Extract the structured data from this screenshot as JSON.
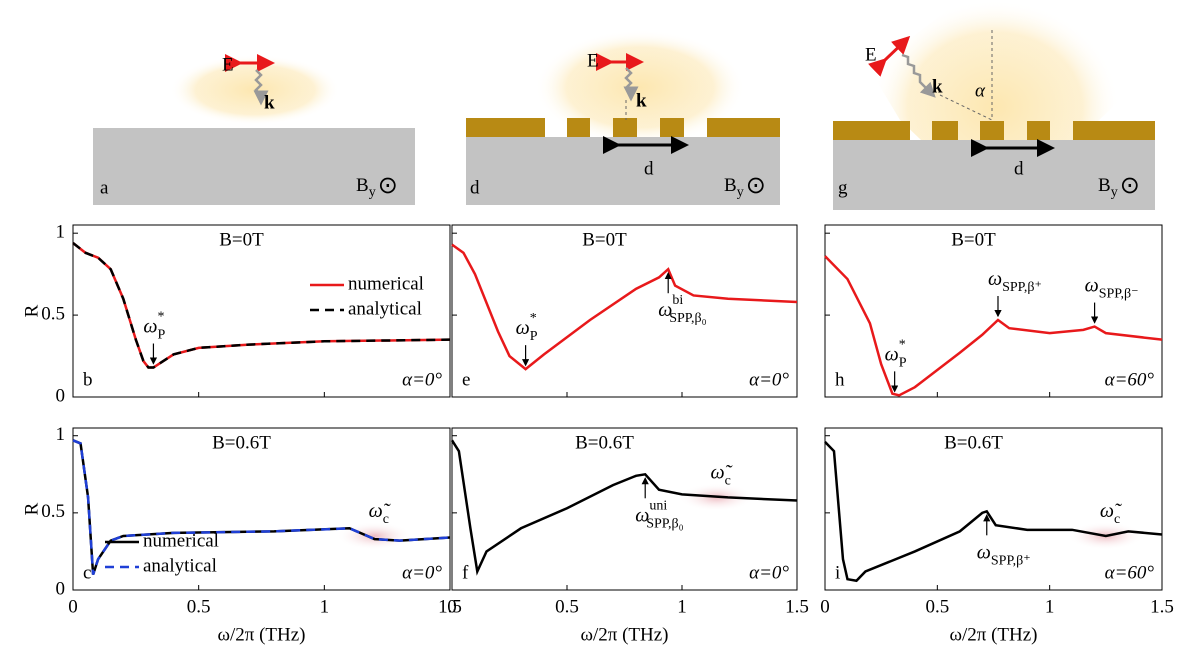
{
  "diagrams": [
    {
      "panel": "a",
      "E": "E",
      "k": "k",
      "B": "B",
      "sub": "y",
      "symbol": "⊙"
    },
    {
      "panel": "d",
      "E": "E",
      "k": "k",
      "d": "d",
      "B": "B",
      "sub": "y",
      "symbol": "⊙"
    },
    {
      "panel": "g",
      "E": "E",
      "k": "k",
      "d": "d",
      "angle": "α",
      "B": "B",
      "sub": "y",
      "symbol": "⊙"
    }
  ],
  "chart_data": [
    {
      "type": "line",
      "panel": "b",
      "field": "B=0T",
      "angle": "α=0°",
      "ylabel": "R",
      "x": [
        0,
        0.05,
        0.1,
        0.15,
        0.2,
        0.25,
        0.28,
        0.3,
        0.32,
        0.35,
        0.4,
        0.5,
        0.7,
        1.0,
        1.5
      ],
      "series": [
        {
          "name": "numerical",
          "color": "#e8191b",
          "dash": false,
          "values": [
            0.94,
            0.88,
            0.85,
            0.78,
            0.6,
            0.35,
            0.22,
            0.18,
            0.18,
            0.21,
            0.26,
            0.3,
            0.32,
            0.34,
            0.35
          ]
        },
        {
          "name": "analytical",
          "color": "#000000",
          "dash": true,
          "values": [
            0.94,
            0.88,
            0.85,
            0.78,
            0.6,
            0.35,
            0.22,
            0.18,
            0.18,
            0.21,
            0.26,
            0.3,
            0.32,
            0.34,
            0.35
          ]
        }
      ],
      "legend": "upper right",
      "annotations": [
        {
          "text": "ω",
          "sub": "P",
          "sup": "*",
          "x": 0.32,
          "y": 0.18
        }
      ],
      "xlim": [
        0,
        1.5
      ],
      "xticks": [
        0,
        0.5,
        1,
        1.5
      ],
      "ylim": [
        0,
        1.05
      ],
      "yticks": [
        0,
        0.5,
        1
      ]
    },
    {
      "type": "line",
      "panel": "e",
      "field": "B=0T",
      "angle": "α=0°",
      "x": [
        0,
        0.05,
        0.1,
        0.2,
        0.25,
        0.32,
        0.4,
        0.6,
        0.8,
        0.9,
        0.94,
        0.97,
        1.05,
        1.2,
        1.5
      ],
      "series": [
        {
          "name": null,
          "color": "#e8191b",
          "dash": false,
          "values": [
            0.93,
            0.88,
            0.75,
            0.4,
            0.25,
            0.17,
            0.26,
            0.47,
            0.66,
            0.73,
            0.78,
            0.68,
            0.62,
            0.6,
            0.58
          ]
        }
      ],
      "annotations": [
        {
          "text": "ω",
          "sub": "P",
          "sup": "*",
          "x": 0.32,
          "y": 0.17
        },
        {
          "text": "ω",
          "sub": "SPP,β₀",
          "sup": "bi",
          "x": 0.94,
          "y": 0.78
        }
      ],
      "xlim": [
        0,
        1.5
      ],
      "xticks": [
        0,
        0.5,
        1,
        1.5
      ],
      "ylim": [
        0,
        1.05
      ],
      "yticks": [
        0,
        0.5,
        1
      ]
    },
    {
      "type": "line",
      "panel": "h",
      "field": "B=0T",
      "angle": "α=60°",
      "x": [
        0,
        0.1,
        0.2,
        0.25,
        0.3,
        0.33,
        0.4,
        0.6,
        0.7,
        0.77,
        0.82,
        1.0,
        1.15,
        1.2,
        1.25,
        1.5
      ],
      "series": [
        {
          "name": null,
          "color": "#e8191b",
          "dash": false,
          "values": [
            0.86,
            0.72,
            0.45,
            0.2,
            0.02,
            0.01,
            0.06,
            0.27,
            0.38,
            0.47,
            0.42,
            0.39,
            0.41,
            0.43,
            0.39,
            0.35
          ]
        }
      ],
      "annotations": [
        {
          "text": "ω",
          "sub": "P",
          "sup": "*",
          "x": 0.31,
          "y": 0.01
        },
        {
          "text": "ω",
          "sub": "SPP,β⁺",
          "sup": "",
          "x": 0.77,
          "y": 0.47
        },
        {
          "text": "ω",
          "sub": "SPP,β⁻",
          "sup": "",
          "x": 1.2,
          "y": 0.43
        }
      ],
      "xlim": [
        0,
        1.5
      ],
      "xticks": [
        0,
        0.5,
        1,
        1.5
      ],
      "ylim": [
        0,
        1.05
      ],
      "yticks": [
        0,
        0.5,
        1
      ]
    },
    {
      "type": "line",
      "panel": "c",
      "field": "B=0.6T",
      "angle": "α=0°",
      "ylabel": "R",
      "xlabel": "ω/2π (THz)",
      "x": [
        0,
        0.03,
        0.06,
        0.08,
        0.1,
        0.15,
        0.2,
        0.4,
        0.8,
        1.1,
        1.2,
        1.3,
        1.5
      ],
      "series": [
        {
          "name": "numerical",
          "color": "#000000",
          "dash": false,
          "values": [
            0.97,
            0.95,
            0.6,
            0.1,
            0.2,
            0.32,
            0.35,
            0.37,
            0.38,
            0.4,
            0.33,
            0.32,
            0.34
          ]
        },
        {
          "name": "analytical",
          "color": "#1f3fd6",
          "dash": true,
          "values": [
            0.97,
            0.95,
            0.6,
            0.1,
            0.2,
            0.32,
            0.35,
            0.37,
            0.38,
            0.4,
            0.33,
            0.32,
            0.34
          ]
        }
      ],
      "legend": "lower left",
      "annotations": [
        {
          "text": "ω̃",
          "sub": "c",
          "sup": "",
          "x": 1.2,
          "y": 0.35
        }
      ],
      "xlim": [
        0,
        1.5
      ],
      "xticks": [
        0,
        0.5,
        1,
        1.5
      ],
      "ylim": [
        0,
        1.05
      ],
      "yticks": [
        0,
        0.5,
        1
      ]
    },
    {
      "type": "line",
      "panel": "f",
      "field": "B=0.6T",
      "angle": "α=0°",
      "xlabel": "ω/2π (THz)",
      "x": [
        0,
        0.03,
        0.08,
        0.11,
        0.15,
        0.3,
        0.5,
        0.7,
        0.8,
        0.84,
        0.9,
        1.0,
        1.2,
        1.5
      ],
      "series": [
        {
          "name": null,
          "color": "#000000",
          "dash": false,
          "values": [
            0.97,
            0.9,
            0.4,
            0.12,
            0.25,
            0.4,
            0.53,
            0.68,
            0.74,
            0.75,
            0.65,
            0.62,
            0.6,
            0.58
          ]
        }
      ],
      "annotations": [
        {
          "text": "ω",
          "sub": "SPP,β₀",
          "sup": "uni",
          "x": 0.84,
          "y": 0.75
        },
        {
          "text": "ω̃",
          "sub": "c",
          "sup": "",
          "x": 1.15,
          "y": 0.6
        }
      ],
      "xlim": [
        0,
        1.5
      ],
      "xticks": [
        0,
        0.5,
        1,
        1.5
      ],
      "ylim": [
        0,
        1.05
      ],
      "yticks": [
        0,
        0.5,
        1
      ]
    },
    {
      "type": "line",
      "panel": "i",
      "field": "B=0.6T",
      "angle": "α=60°",
      "xlabel": "ω/2π (THz)",
      "x": [
        0,
        0.04,
        0.08,
        0.1,
        0.14,
        0.18,
        0.4,
        0.6,
        0.7,
        0.72,
        0.76,
        0.9,
        1.1,
        1.25,
        1.35,
        1.5
      ],
      "series": [
        {
          "name": null,
          "color": "#000000",
          "dash": false,
          "values": [
            0.96,
            0.9,
            0.2,
            0.07,
            0.06,
            0.12,
            0.25,
            0.38,
            0.5,
            0.51,
            0.42,
            0.39,
            0.39,
            0.35,
            0.38,
            0.36
          ]
        }
      ],
      "annotations": [
        {
          "text": "ω",
          "sub": "SPP,β⁺",
          "sup": "",
          "x": 0.72,
          "y": 0.51
        },
        {
          "text": "ω̃",
          "sub": "c",
          "sup": "",
          "x": 1.25,
          "y": 0.35
        }
      ],
      "xlim": [
        0,
        1.5
      ],
      "xticks": [
        0,
        0.5,
        1,
        1.5
      ],
      "ylim": [
        0,
        1.05
      ],
      "yticks": [
        0,
        0.5,
        1
      ]
    }
  ]
}
